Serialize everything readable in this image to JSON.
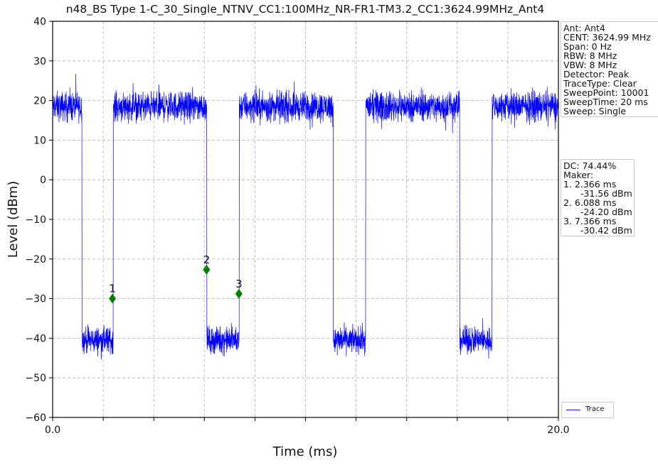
{
  "chart_data": {
    "type": "line",
    "title": "n48_BS Type 1-C_30_Single_NTNV_CC1:100MHz_NR-FR1-TM3.2_CC1:3624.99MHz_Ant4",
    "xlabel": "Time (ms)",
    "ylabel": "Level (dBm)",
    "xlim": [
      0.0,
      20.0
    ],
    "ylim": [
      -60,
      40
    ],
    "x_tick_labels": [
      "0.0",
      "20.0"
    ],
    "x_minor_ticks": [
      2,
      4,
      6,
      8,
      10,
      12,
      14,
      16,
      18
    ],
    "y_ticks": [
      40,
      30,
      20,
      10,
      0,
      -10,
      -20,
      -30,
      -40,
      -50,
      -60
    ],
    "y_tick_labels": [
      "40",
      "30",
      "20",
      "10",
      "0",
      "−10",
      "−20",
      "−30",
      "−40",
      "−50",
      "−60"
    ],
    "grid": true,
    "legend_position": "lower-right",
    "series": [
      {
        "name": "Trace",
        "color": "#0000ff",
        "high_level_dbm": 18.5,
        "low_level_dbm": -40.5,
        "high_noise_dbm": 1.8,
        "low_noise_dbm": 1.6,
        "segments": [
          {
            "start": 0.0,
            "end": 1.16,
            "level": "high"
          },
          {
            "start": 1.16,
            "end": 2.4,
            "level": "low"
          },
          {
            "start": 2.4,
            "end": 6.1,
            "level": "high"
          },
          {
            "start": 6.1,
            "end": 7.38,
            "level": "low"
          },
          {
            "start": 7.38,
            "end": 11.1,
            "level": "high"
          },
          {
            "start": 11.1,
            "end": 12.38,
            "level": "low"
          },
          {
            "start": 12.38,
            "end": 16.1,
            "level": "high"
          },
          {
            "start": 16.1,
            "end": 17.38,
            "level": "low"
          },
          {
            "start": 17.38,
            "end": 20.0,
            "level": "high"
          }
        ]
      }
    ],
    "markers": [
      {
        "label": "1",
        "x": 2.366,
        "y": -30.0,
        "color": "#008000"
      },
      {
        "label": "2",
        "x": 6.088,
        "y": -22.7,
        "color": "#008000"
      },
      {
        "label": "3",
        "x": 7.366,
        "y": -28.8,
        "color": "#008000"
      }
    ],
    "info_box": [
      "Ant: Ant4",
      "CENT: 3624.99 MHz",
      "Span: 0 Hz",
      "RBW: 8 MHz",
      "VBW: 8 MHz",
      "Detector: Peak",
      "TraceType: Clear",
      "SweepPoint: 10001",
      "SweepTime: 20 ms",
      "Sweep: Single"
    ],
    "marker_box": [
      "DC: 74.44%",
      "Maker:",
      "1. 2.366 ms",
      "      -31.56 dBm",
      "2. 6.088 ms",
      "      -24.20 dBm",
      "3. 7.366 ms",
      "      -30.42 dBm"
    ]
  }
}
